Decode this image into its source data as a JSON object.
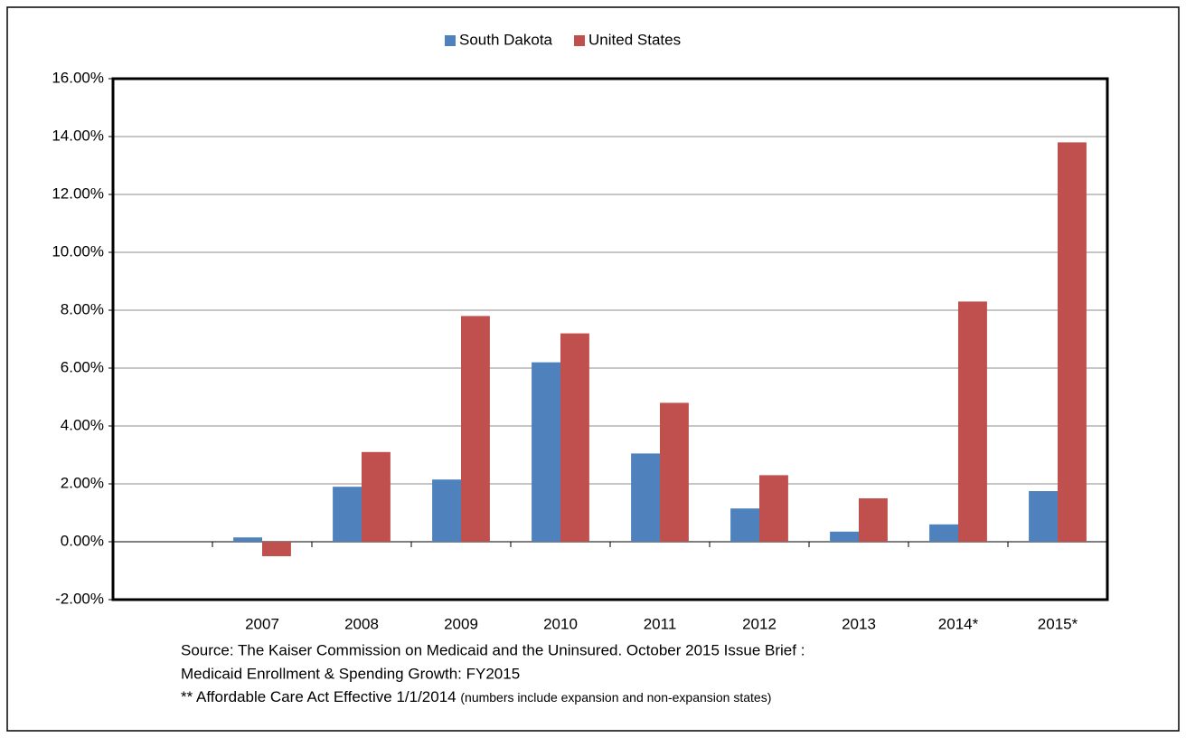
{
  "chart_data": {
    "type": "bar",
    "categories": [
      null,
      "2007",
      "2008",
      "2009",
      "2010",
      "2011",
      "2012",
      "2013",
      "2014*",
      "2015*"
    ],
    "series": [
      {
        "name": "South Dakota",
        "color": "#4f81bd",
        "values": [
          null,
          0.15,
          1.9,
          2.15,
          6.2,
          3.05,
          1.15,
          0.35,
          0.6,
          1.75
        ]
      },
      {
        "name": "United States",
        "color": "#c0504d",
        "values": [
          null,
          -0.5,
          3.1,
          7.8,
          7.2,
          4.8,
          2.3,
          1.5,
          8.3,
          13.8
        ]
      }
    ],
    "ylim": [
      -2,
      16
    ],
    "yticks": [
      {
        "value": -2,
        "label": "-2.00%"
      },
      {
        "value": 0,
        "label": "0.00%"
      },
      {
        "value": 2,
        "label": "2.00%"
      },
      {
        "value": 4,
        "label": "4.00%"
      },
      {
        "value": 6,
        "label": "6.00%"
      },
      {
        "value": 8,
        "label": "8.00%"
      },
      {
        "value": 10,
        "label": "10.00%"
      },
      {
        "value": 12,
        "label": "12.00%"
      },
      {
        "value": 14,
        "label": "14.00%"
      },
      {
        "value": 16,
        "label": "16.00%"
      }
    ],
    "grid": true,
    "legend": "top",
    "source": [
      "Source: The Kaiser Commission on Medicaid and the Uninsured. October 2015 Issue Brief :",
      "Medicaid Enrollment & Spending Growth: FY2015"
    ],
    "note": "** Affordable  Care Act Effective 1/1/2014",
    "note_detail": "(numbers include expansion and non-expansion states)"
  }
}
